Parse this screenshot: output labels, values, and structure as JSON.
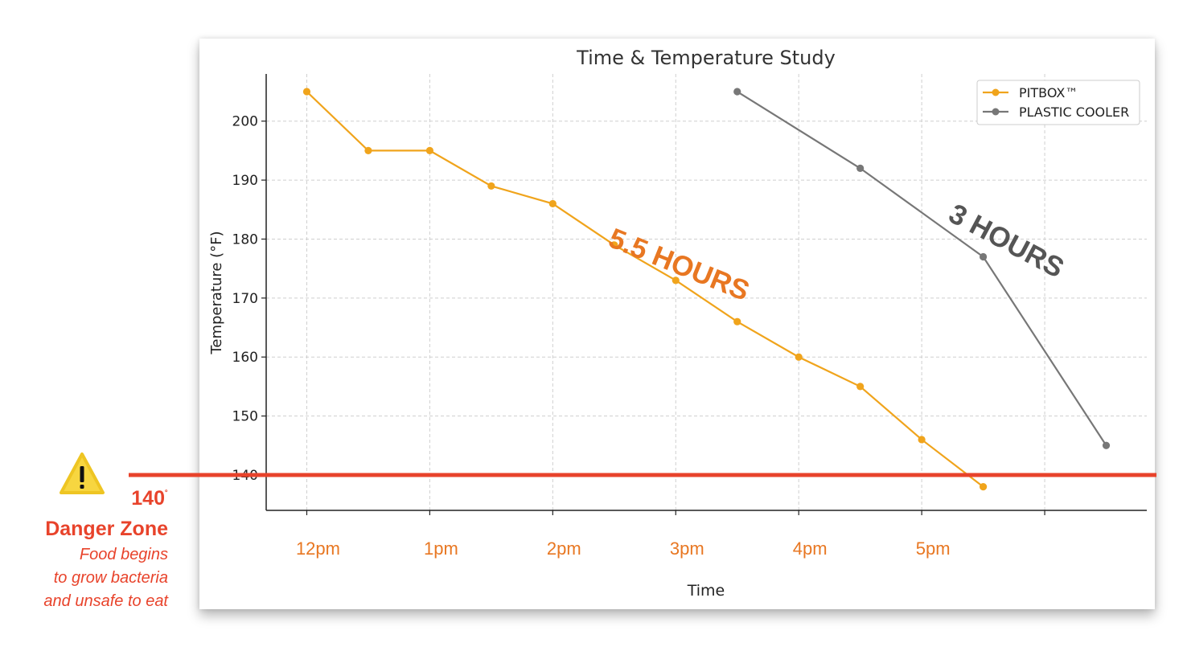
{
  "chart_data": {
    "type": "line",
    "title": "Time & Temperature Study",
    "xlabel": "Time",
    "ylabel": "Temperature (°F)",
    "x_ticks": [
      "12pm",
      "1pm",
      "2pm",
      "3pm",
      "4pm",
      "5pm"
    ],
    "x_tick_values": [
      0,
      1,
      2,
      3,
      4,
      5
    ],
    "xlim": [
      -0.33,
      6.83
    ],
    "y_ticks": [
      140,
      150,
      160,
      170,
      180,
      190,
      200
    ],
    "ylim": [
      134,
      208
    ],
    "grid": true,
    "legend_position": "top-right",
    "series": [
      {
        "name": "PITBOX™",
        "color": "#f0a41c",
        "x": [
          0,
          0.5,
          1,
          1.5,
          2,
          2.5,
          3,
          3.5,
          4,
          4.5,
          5,
          5.5
        ],
        "y": [
          205,
          195,
          195,
          189,
          186,
          179,
          173,
          166,
          160,
          155,
          146,
          138
        ]
      },
      {
        "name": "PLASTIC COOLER",
        "color": "#777777",
        "x": [
          3.5,
          4.5,
          5.5,
          6.5
        ],
        "y": [
          205,
          192,
          177,
          145
        ]
      }
    ],
    "annotations": [
      {
        "text": "5.5 HOURS",
        "color": "#e87722"
      },
      {
        "text": "3 HOURS",
        "color": "#555555"
      }
    ],
    "threshold": {
      "value": 140,
      "color": "#e8432b"
    }
  },
  "danger_zone": {
    "temperature": "140",
    "degree_mark": "˚",
    "title": "Danger Zone",
    "description": [
      "Food begins",
      "to grow bacteria",
      "and unsafe to eat"
    ],
    "icon": "warning-icon",
    "color": "#e8432b"
  }
}
